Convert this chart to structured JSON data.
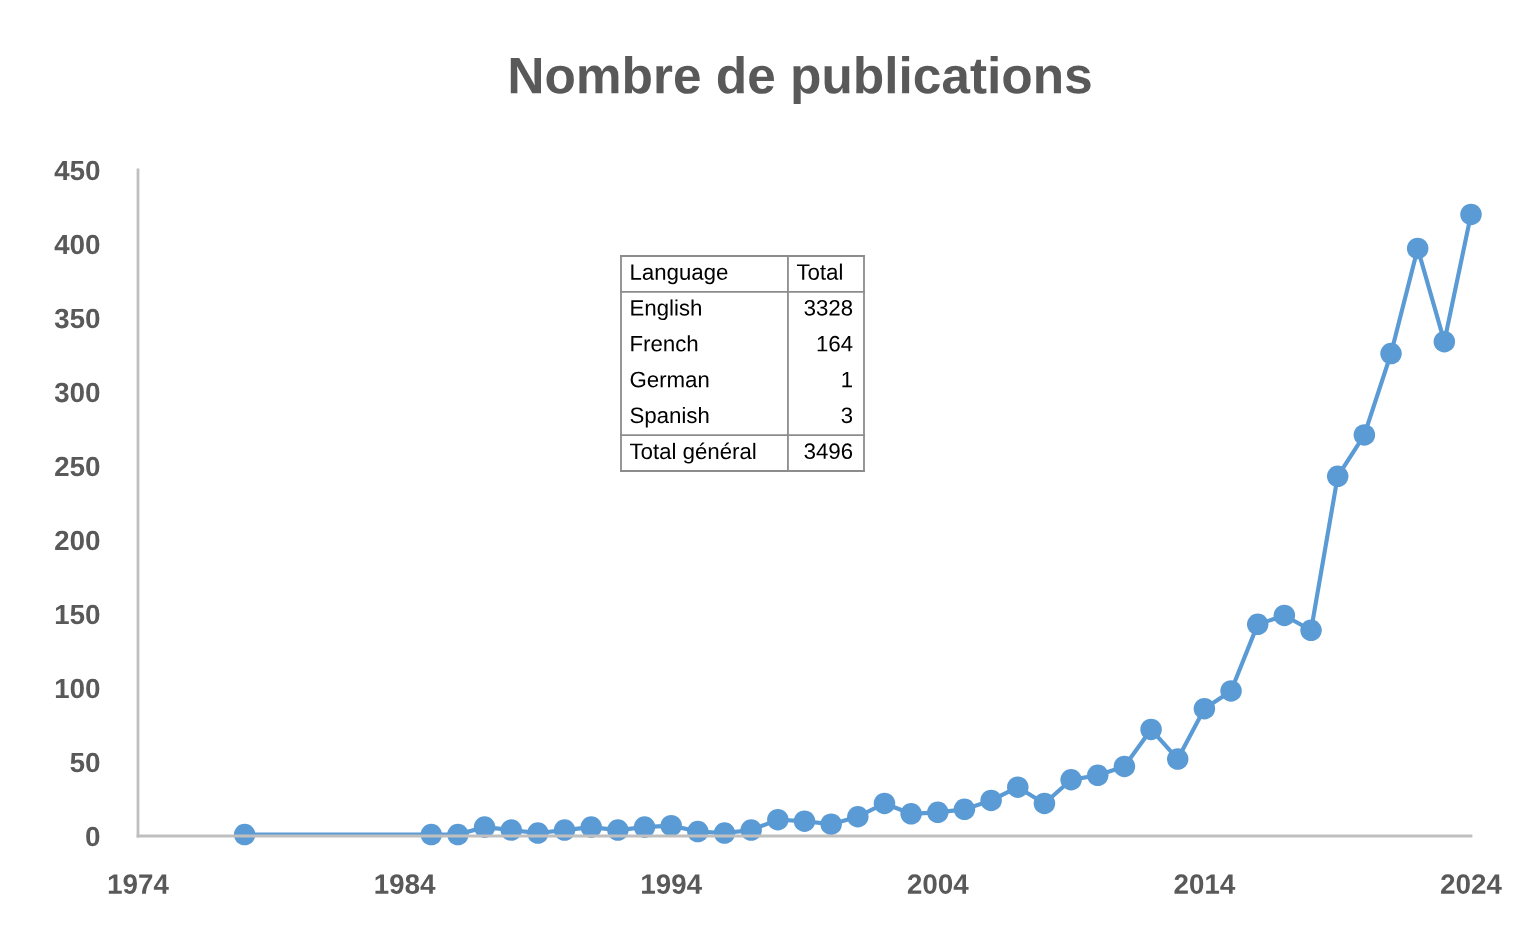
{
  "chart_data": [
    {
      "type": "line",
      "title": "Nombre de publications",
      "x": [
        1978,
        1985,
        1986,
        1987,
        1988,
        1989,
        1990,
        1991,
        1992,
        1993,
        1994,
        1995,
        1996,
        1997,
        1998,
        1999,
        2000,
        2001,
        2002,
        2003,
        2004,
        2005,
        2006,
        2007,
        2008,
        2009,
        2010,
        2011,
        2012,
        2013,
        2014,
        2015,
        2016,
        2017,
        2018,
        2019,
        2020,
        2021,
        2022,
        2023,
        2024
      ],
      "series": [
        {
          "color": "#5b9bd5",
          "values": [
            1,
            1,
            1,
            6,
            4,
            2,
            4,
            6,
            4,
            6,
            7,
            3,
            2,
            4,
            11,
            10,
            8,
            13,
            22,
            15,
            16,
            18,
            24,
            33,
            22,
            38,
            41,
            47,
            72,
            52,
            86,
            98,
            143,
            149,
            139,
            243,
            271,
            326,
            397,
            334,
            420
          ]
        }
      ],
      "xlim": [
        1974,
        2024
      ],
      "xticks": [
        1974,
        1984,
        1994,
        2004,
        2014,
        2024
      ],
      "ylim": [
        0,
        450
      ],
      "yticks": [
        0,
        50,
        100,
        150,
        200,
        250,
        300,
        350,
        400,
        450
      ],
      "marker": "circle",
      "line_style": "solid"
    },
    {
      "type": "other",
      "xlabel": "Language",
      "ylabel": "Total",
      "categories": [
        "English",
        "French",
        "German",
        "Spanish",
        "Total général"
      ],
      "values": [
        3328,
        164,
        1,
        3,
        3496
      ],
      "data_labels": true
    }
  ]
}
